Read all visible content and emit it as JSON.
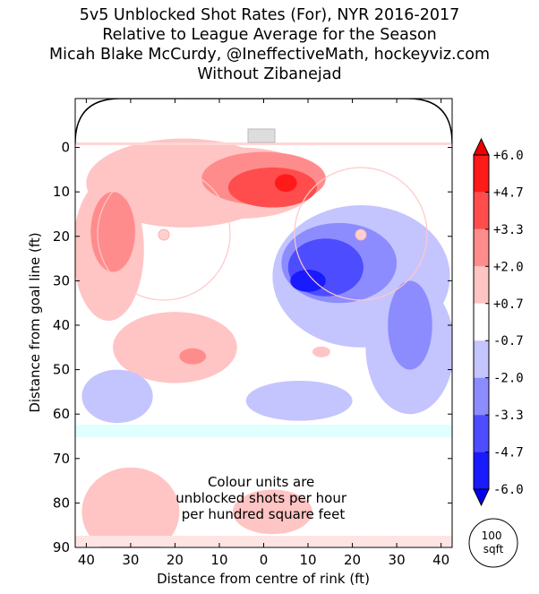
{
  "chart_data": {
    "type": "heatmap",
    "title": [
      "5v5 Unblocked Shot Rates (For), NYR 2016-2017",
      "Relative to League Average for the Season",
      "Micah Blake McCurdy, @IneffectiveMath, hockeyviz.com",
      "Without Zibanejad"
    ],
    "xlabel": "Distance from centre of rink (ft)",
    "ylabel": "Distance from goal line (ft)",
    "x_ticks": [
      "40",
      "30",
      "20",
      "10",
      "0",
      "10",
      "20",
      "30",
      "40"
    ],
    "y_ticks": [
      "0",
      "10",
      "20",
      "30",
      "40",
      "50",
      "60",
      "70",
      "80",
      "90"
    ],
    "xlim": [
      -42.5,
      42.5
    ],
    "ylim": [
      -11,
      90
    ],
    "colorbar": {
      "labels": [
        "+6.0",
        "+4.7",
        "+3.3",
        "+2.0",
        "+0.7",
        "-0.7",
        "-2.0",
        "-3.3",
        "-4.7",
        "-6.0"
      ],
      "colors": [
        "#ff1a1a",
        "#ff4d4d",
        "#ff8c8c",
        "#ffc4c4",
        "#ffffff",
        "#c4c4ff",
        "#8c8cff",
        "#4d4dff",
        "#1a1aff"
      ],
      "extend_top": "#ee0000",
      "extend_bottom": "#0000ee"
    },
    "annotation": "Colour units are\nunblocked shots per hour\nper hundred square feet",
    "scale_label": "100\nsqft",
    "regions": [
      {
        "level": 0.7,
        "cx": -18,
        "cy": 8,
        "rx": 22,
        "ry": 10
      },
      {
        "level": 0.7,
        "cx": -35,
        "cy": 23,
        "rx": 8,
        "ry": 16
      },
      {
        "level": 0.7,
        "cx": -5,
        "cy": 8,
        "rx": 17,
        "ry": 8
      },
      {
        "level": 2.0,
        "cx": 0,
        "cy": 7,
        "rx": 14,
        "ry": 6
      },
      {
        "level": 2.0,
        "cx": -34,
        "cy": 19,
        "rx": 5,
        "ry": 9
      },
      {
        "level": 3.3,
        "cx": 2,
        "cy": 9,
        "rx": 10,
        "ry": 4.5
      },
      {
        "level": 4.7,
        "cx": 5,
        "cy": 8,
        "rx": 2.5,
        "ry": 2
      },
      {
        "level": 0.7,
        "cx": -20,
        "cy": 45,
        "rx": 14,
        "ry": 8
      },
      {
        "level": 2.0,
        "cx": -16,
        "cy": 47,
        "rx": 3,
        "ry": 1.8
      },
      {
        "level": 0.7,
        "cx": 13,
        "cy": 46,
        "rx": 2,
        "ry": 1.2
      },
      {
        "level": 0.7,
        "cx": -30,
        "cy": 82,
        "rx": 11,
        "ry": 10
      },
      {
        "level": 0.7,
        "cx": 2,
        "cy": 82,
        "rx": 9,
        "ry": 5
      },
      {
        "level": -0.7,
        "cx": 22,
        "cy": 29,
        "rx": 20,
        "ry": 16
      },
      {
        "level": -0.7,
        "cx": 33,
        "cy": 45,
        "rx": 10,
        "ry": 15
      },
      {
        "level": -0.7,
        "cx": -33,
        "cy": 56,
        "rx": 8,
        "ry": 6
      },
      {
        "level": -0.7,
        "cx": 8,
        "cy": 57,
        "rx": 12,
        "ry": 4.5
      },
      {
        "level": -2.0,
        "cx": 17,
        "cy": 26,
        "rx": 13,
        "ry": 9
      },
      {
        "level": -2.0,
        "cx": 33,
        "cy": 40,
        "rx": 5,
        "ry": 10
      },
      {
        "level": -3.3,
        "cx": 14,
        "cy": 27,
        "rx": 8.5,
        "ry": 6.5
      },
      {
        "level": -4.7,
        "cx": 10,
        "cy": 30,
        "rx": 4,
        "ry": 2.5
      }
    ]
  }
}
